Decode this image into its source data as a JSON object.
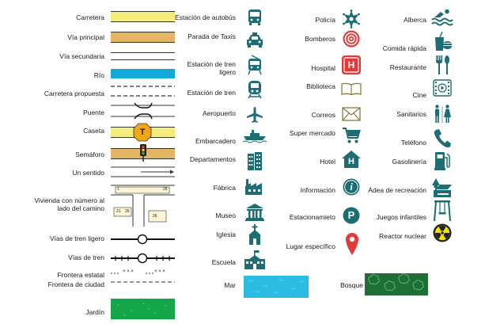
{
  "legend": {
    "col1": [
      {
        "key": "carretera",
        "label": "Carretera"
      },
      {
        "key": "via_principal",
        "label": "Vía principal"
      },
      {
        "key": "via_secundaria",
        "label": "Vía secundaria"
      },
      {
        "key": "rio",
        "label": "Río"
      },
      {
        "key": "carretera_propuesta",
        "label": "Carretera propuesta"
      },
      {
        "key": "puente",
        "label": "Puente"
      },
      {
        "key": "caseta",
        "label": "Caseta"
      },
      {
        "key": "semaforo",
        "label": "Semáforo"
      },
      {
        "key": "un_sentido",
        "label": "Un sentido"
      },
      {
        "key": "vivienda",
        "label": "Vivienda con número al lado del camino"
      },
      {
        "key": "tren_ligero",
        "label": "Vías de tren ligero"
      },
      {
        "key": "vias_tren",
        "label": "Vías de tren"
      },
      {
        "key": "frontera_estatal",
        "label": "Frontera estatal"
      },
      {
        "key": "frontera_ciudad",
        "label": "Frontera de ciudad"
      },
      {
        "key": "jardin",
        "label": "Jardín"
      }
    ],
    "col2": [
      {
        "key": "estacion_autobus",
        "label": "Estación de autobús"
      },
      {
        "key": "parada_taxis",
        "label": "Parada de Taxis"
      },
      {
        "key": "estacion_tren_ligero",
        "label": "Estación de tren ligero"
      },
      {
        "key": "estacion_tren",
        "label": "Estación de tren"
      },
      {
        "key": "aeropuerto",
        "label": "Aeropuerto"
      },
      {
        "key": "embarcadero",
        "label": "Embarcadero"
      },
      {
        "key": "departamentos",
        "label": "Departamentos"
      },
      {
        "key": "fabrica",
        "label": "Fábrica"
      },
      {
        "key": "museo",
        "label": "Museo"
      },
      {
        "key": "iglesia",
        "label": "Iglesia"
      },
      {
        "key": "escuela",
        "label": "Escuela"
      },
      {
        "key": "mar",
        "label": "Mar"
      }
    ],
    "col3": [
      {
        "key": "policia",
        "label": "Policía"
      },
      {
        "key": "bomberos",
        "label": "Bomberos"
      },
      {
        "key": "hospital",
        "label": "Hospital"
      },
      {
        "key": "biblioteca",
        "label": "Biblioteca"
      },
      {
        "key": "correos",
        "label": "Correos"
      },
      {
        "key": "supermercado",
        "label": "Super mercado"
      },
      {
        "key": "hotel",
        "label": "Hotel"
      },
      {
        "key": "informacion",
        "label": "Información"
      },
      {
        "key": "estacionamiento",
        "label": "Estacionamieto"
      },
      {
        "key": "lugar_especifico",
        "label": "Lugar específico"
      },
      {
        "key": "bosque",
        "label": "Bosque"
      }
    ],
    "col4": [
      {
        "key": "alberca",
        "label": "Alberca"
      },
      {
        "key": "comida_rapida",
        "label": "Comida rápida"
      },
      {
        "key": "restaurante",
        "label": "Restaurante"
      },
      {
        "key": "cine",
        "label": "Cine"
      },
      {
        "key": "sanitarios",
        "label": "Sanitarios"
      },
      {
        "key": "telefono",
        "label": "Teléfono"
      },
      {
        "key": "gasolineria",
        "label": "Gasolinería"
      },
      {
        "key": "area_recreacion",
        "label": "Ádea de recreación"
      },
      {
        "key": "juegos_infantiles",
        "label": "Juegos infantiles"
      },
      {
        "key": "reactor_nuclear",
        "label": "Reactor nuclear"
      }
    ]
  },
  "symbol_text": {
    "toll_letter": "T",
    "house_number_top": "1",
    "house_number_top_right": "28",
    "house_number_left_1": "21",
    "house_number_left_2": "26",
    "house_number_right": "26",
    "hospital_letter": "H",
    "hotel_letter": "H",
    "info_letter": "i",
    "parking_letter": "P",
    "border_state_marks": "× × ×"
  },
  "colors": {
    "carretera": "#f4ec7c",
    "via_principal": "#e3b565",
    "rio": "#12a9d8",
    "jardin": "#16a64a",
    "mar": "#2bbce3",
    "bosque": "#1e6e36",
    "icon_teal": "#1d6d75",
    "fire_red": "#e03a3a",
    "toll_orange": "#f3a712",
    "reactor_yellow": "#f2e200"
  }
}
